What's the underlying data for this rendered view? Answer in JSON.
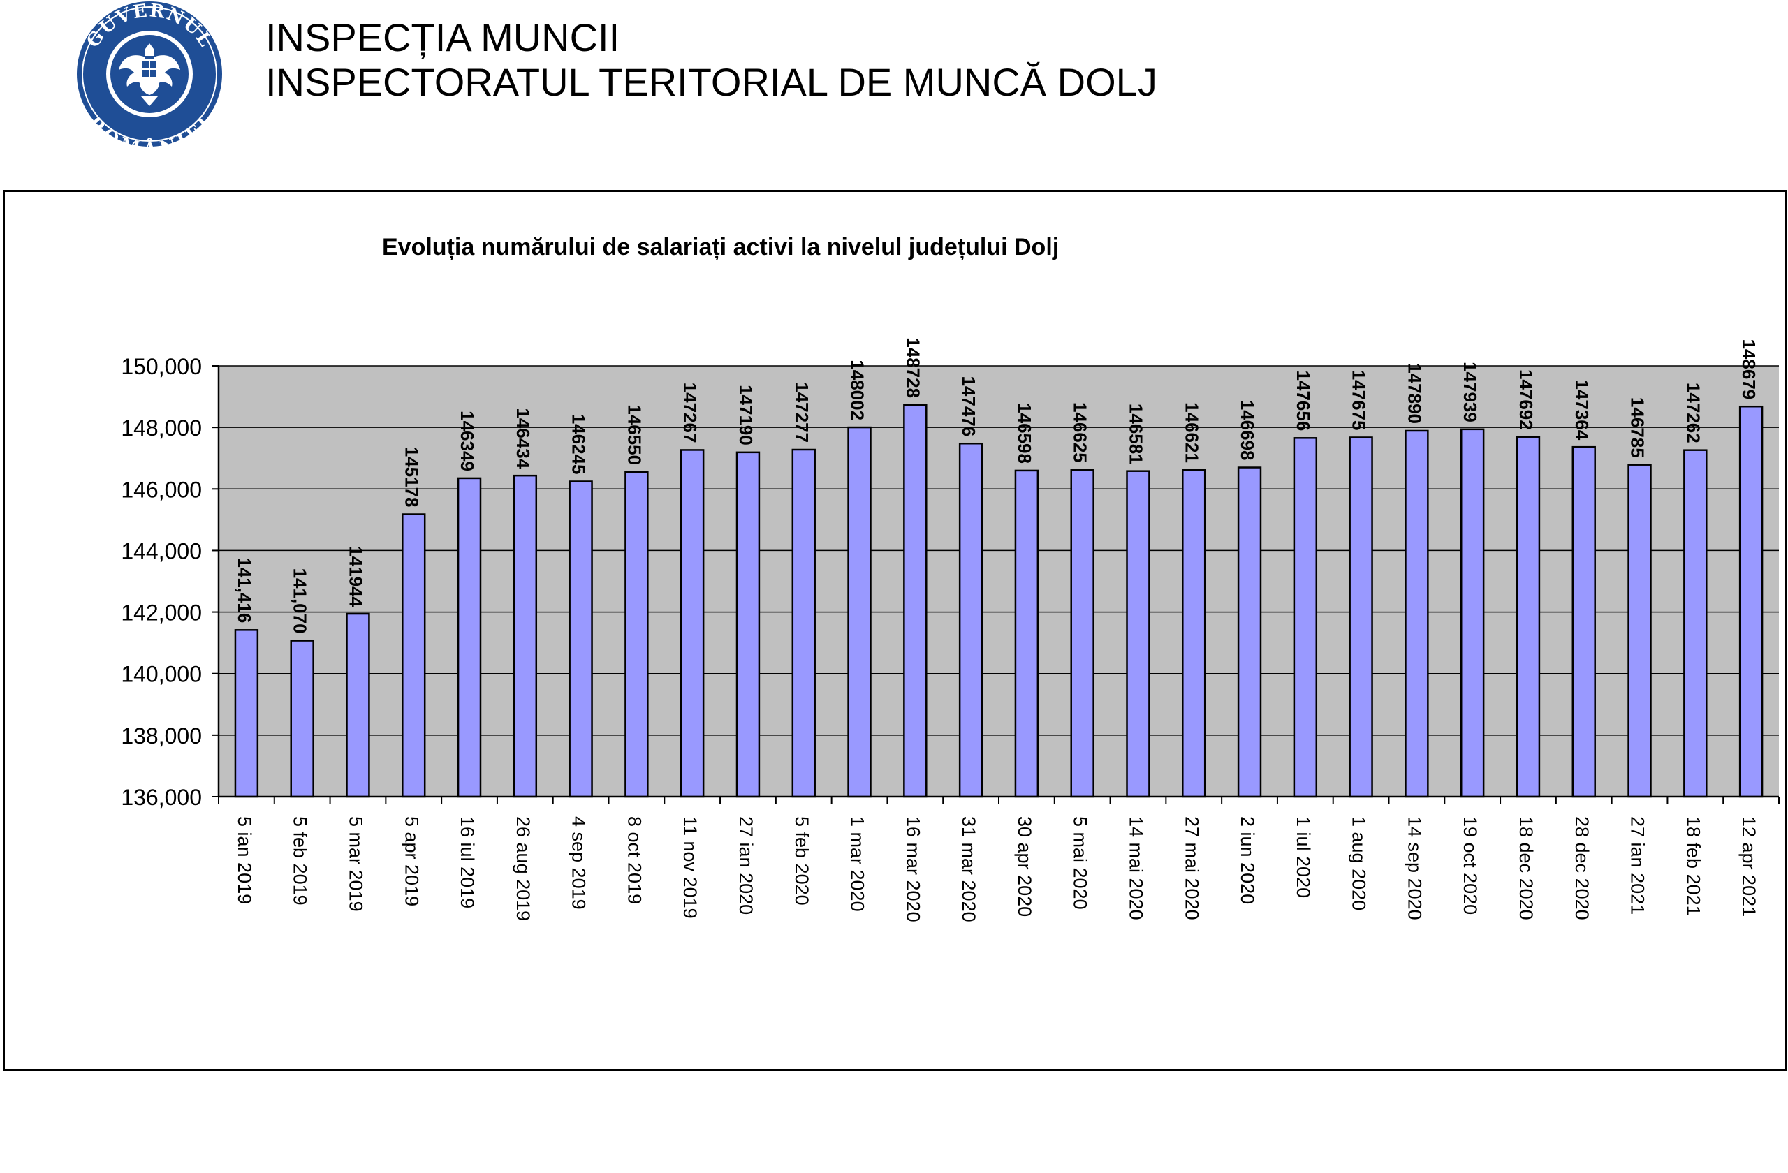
{
  "header": {
    "line1": "INSPECȚIA MUNCII",
    "line2": "INSPECTORATUL TERITORIAL DE MUNCĂ DOLJ"
  },
  "logo": {
    "icon": "guvernul-romaniei-seal-icon",
    "text_top": "GUVERNUL",
    "text_bottom": "ROMÂNIEI",
    "color": "#1f4e96"
  },
  "chart_data": {
    "type": "bar",
    "title": "Evoluția numărului de salariați activi la nivelul județului Dolj",
    "xlabel": "",
    "ylabel": "",
    "ylim": [
      136000,
      150000
    ],
    "yticks": [
      "136,000",
      "138,000",
      "140,000",
      "142,000",
      "144,000",
      "146,000",
      "148,000",
      "150,000"
    ],
    "grid": true,
    "legend": "none",
    "bar_color": "#9999ff",
    "plot_background": "#c0c0c0",
    "categories": [
      "5 ian 2019",
      "5 feb 2019",
      "5 mar 2019",
      "5 apr 2019",
      "16 iul 2019",
      "26 aug 2019",
      "4 sep 2019",
      "8 oct 2019",
      "11 nov 2019",
      "27 ian 2020",
      "5 feb 2020",
      "1 mar 2020",
      "16 mar 2020",
      "31 mar 2020",
      "30 apr 2020",
      "5 mai 2020",
      "14 mai 2020",
      "27 mai 2020",
      "2 iun 2020",
      "1 iul 2020",
      "1 aug 2020",
      "14 sep 2020",
      "19 oct 2020",
      "18 dec 2020",
      "28 dec 2020",
      "27 ian 2021",
      "18 feb 2021",
      "12 apr 2021"
    ],
    "values": [
      141416,
      141070,
      141944,
      145178,
      146349,
      146434,
      146245,
      146550,
      147267,
      147190,
      147277,
      148002,
      148728,
      147476,
      146598,
      146625,
      146581,
      146621,
      146698,
      147656,
      147675,
      147890,
      147939,
      147692,
      147364,
      146785,
      147262,
      148679
    ],
    "data_labels": [
      "141,416",
      "141,070",
      "141944",
      "145178",
      "146349",
      "146434",
      "146245",
      "146550",
      "147267",
      "147190",
      "147277",
      "148002",
      "148728",
      "147476",
      "146598",
      "146625",
      "146581",
      "146621",
      "146698",
      "147656",
      "147675",
      "147890",
      "147939",
      "147692",
      "147364",
      "146785",
      "147262",
      "148679"
    ]
  }
}
